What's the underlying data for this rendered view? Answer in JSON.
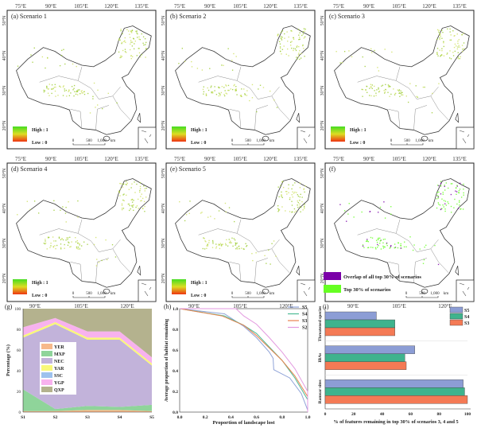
{
  "maps": {
    "lon_labels_top": [
      "75°E",
      "90°E",
      "105°E",
      "120°E",
      "135°E"
    ],
    "lon_labels_bottom": [
      "90°E",
      "105°E",
      "120°E"
    ],
    "lat_labels": [
      "50°N",
      "40°N",
      "30°N",
      "20°N"
    ],
    "legend_high": "High : 1",
    "legend_low": "Low : 0",
    "scale_labels": [
      "0",
      "500",
      "1,000",
      "km"
    ],
    "panels": [
      {
        "label": "(a) Scenario 1",
        "kind": "gradient"
      },
      {
        "label": "(b) Scenario 2",
        "kind": "gradient"
      },
      {
        "label": "(c) Scenario 3",
        "kind": "gradient"
      },
      {
        "label": "(d) Scenario 4",
        "kind": "gradient"
      },
      {
        "label": "(e) Scenario 5",
        "kind": "gradient"
      },
      {
        "label": "(f)",
        "kind": "overlap"
      }
    ],
    "overlap_legend": [
      "Overlap of all top 30% of scenarios",
      "Top 30% of scenarios"
    ],
    "colors": {
      "high": "#44dd22",
      "low": "#ee3311",
      "overlap": "#7a00a8",
      "top30": "#66ff22"
    }
  },
  "chart_data": [
    {
      "panel": "(g)",
      "type": "area",
      "stacked": true,
      "categories": [
        "S1",
        "S2",
        "S3",
        "S4",
        "S5"
      ],
      "ylabel": "Percentage (%)",
      "xlabel": "",
      "ylim": [
        0,
        100
      ],
      "yticks": [
        0,
        20,
        40,
        60,
        80,
        100
      ],
      "legend_position": "center-left",
      "series": [
        {
          "name": "YER",
          "color": "#f7b98a",
          "values": [
            1,
            1,
            2,
            2,
            1
          ]
        },
        {
          "name": "MXP",
          "color": "#8fd49a",
          "values": [
            21,
            2,
            4,
            3,
            6
          ]
        },
        {
          "name": "NEC",
          "color": "#c2b3da",
          "values": [
            50,
            82,
            64,
            65,
            38
          ]
        },
        {
          "name": "YAR",
          "color": "#f9f87a",
          "values": [
            2,
            2,
            2,
            2,
            2
          ]
        },
        {
          "name": "SSC",
          "color": "#9ec2ee",
          "values": [
            0,
            0,
            0,
            0,
            0
          ]
        },
        {
          "name": "YGP",
          "color": "#f8b2ee",
          "values": [
            8,
            4,
            6,
            6,
            6
          ]
        },
        {
          "name": "QXP",
          "color": "#b4b28e",
          "values": [
            18,
            9,
            22,
            22,
            47
          ]
        }
      ]
    },
    {
      "panel": "(h)",
      "type": "line",
      "xlabel": "Proportion of landscape lost",
      "ylabel": "Average proportion of habitat remaining",
      "xlim": [
        0,
        1
      ],
      "ylim": [
        0,
        1
      ],
      "xticks": [
        "0.0",
        "0.2",
        "0.4",
        "0.6",
        "0.8",
        "1.0"
      ],
      "yticks": [
        "0.0",
        "0.2",
        "0.4",
        "0.6",
        "0.8",
        "1.0"
      ],
      "legend_position": "top-right",
      "series": [
        {
          "name": "S5",
          "color": "#8fa3d8",
          "points": [
            [
              0,
              1
            ],
            [
              0.35,
              0.95
            ],
            [
              0.5,
              0.83
            ],
            [
              0.6,
              0.72
            ],
            [
              0.7,
              0.58
            ],
            [
              0.73,
              0.52
            ],
            [
              0.735,
              0.41
            ],
            [
              0.86,
              0.33
            ],
            [
              0.95,
              0.18
            ],
            [
              1,
              0.02
            ]
          ]
        },
        {
          "name": "S4",
          "color": "#4dbb95",
          "points": [
            [
              0,
              1
            ],
            [
              0.35,
              0.93
            ],
            [
              0.5,
              0.84
            ],
            [
              0.6,
              0.76
            ],
            [
              0.7,
              0.63
            ],
            [
              0.8,
              0.5
            ],
            [
              0.9,
              0.33
            ],
            [
              1,
              0.12
            ],
            [
              1,
              0
            ]
          ]
        },
        {
          "name": "S3",
          "color": "#e8834f",
          "points": [
            [
              0,
              1
            ],
            [
              0.33,
              0.93
            ],
            [
              0.5,
              0.84
            ],
            [
              0.6,
              0.74
            ],
            [
              0.7,
              0.62
            ],
            [
              0.8,
              0.5
            ],
            [
              0.9,
              0.35
            ],
            [
              1,
              0.15
            ],
            [
              1,
              0
            ]
          ]
        },
        {
          "name": "S2",
          "color": "#e39ae0",
          "points": [
            [
              0,
              1
            ],
            [
              0.44,
              1
            ],
            [
              0.5,
              0.93
            ],
            [
              0.6,
              0.85
            ],
            [
              0.7,
              0.72
            ],
            [
              0.8,
              0.58
            ],
            [
              0.9,
              0.42
            ],
            [
              1,
              0.2
            ],
            [
              1,
              0
            ]
          ]
        }
      ]
    },
    {
      "panel": "(i)",
      "type": "bar",
      "orientation": "horizontal",
      "categories": [
        "Threatened species",
        "IBAs",
        "Ramsar sites"
      ],
      "xlabel": "% of features remaining in top 30% of scenarios 3, 4 and 5",
      "xlim": [
        0,
        100
      ],
      "xticks": [
        "0",
        "20",
        "40",
        "60",
        "80",
        "100"
      ],
      "legend_position": "top-right",
      "series": [
        {
          "name": "S5",
          "color": "#8c9dd5",
          "values": [
            36,
            63,
            97
          ]
        },
        {
          "name": "S4",
          "color": "#3fb38d",
          "values": [
            49,
            56,
            98
          ]
        },
        {
          "name": "S3",
          "color": "#f47a55",
          "values": [
            49,
            57,
            100
          ]
        }
      ]
    }
  ]
}
